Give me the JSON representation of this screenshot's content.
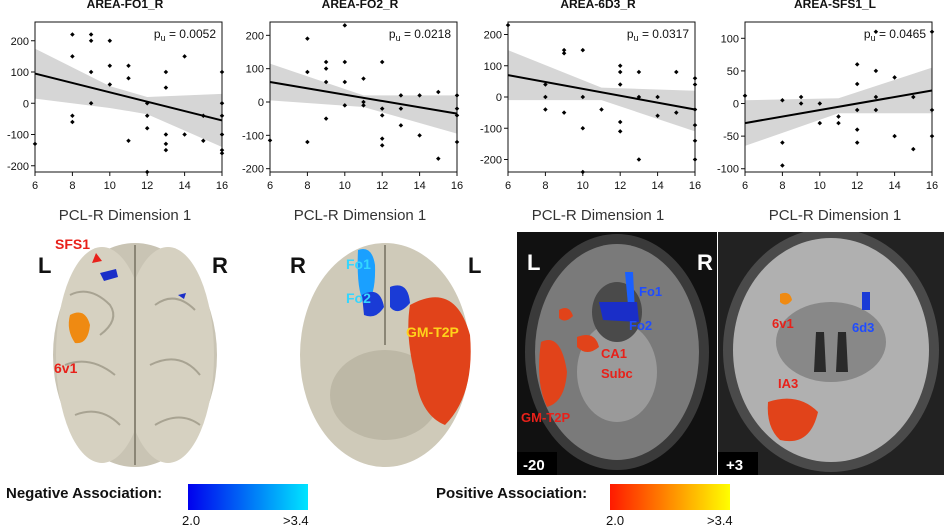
{
  "chart_data": [
    {
      "type": "scatter",
      "title": "AREA-FO1_R",
      "pvalue_label": "= 0.0052",
      "xlabel": "PCL-R Dimension 1",
      "xlim": [
        6,
        16
      ],
      "xticks": [
        6,
        8,
        10,
        12,
        14,
        16
      ],
      "ylim": [
        -220,
        260
      ],
      "yticks": [
        "-200",
        "-100",
        "0",
        "100",
        "200"
      ],
      "yticks_visible": [
        "200",
        "100",
        "0",
        "-100",
        "-200"
      ],
      "fit": [
        [
          6,
          95
        ],
        [
          16,
          -55
        ]
      ],
      "ci_upper": [
        [
          6,
          175
        ],
        [
          10,
          55
        ],
        [
          12,
          20
        ],
        [
          16,
          30
        ]
      ],
      "ci_lower": [
        [
          6,
          15
        ],
        [
          10,
          -15
        ],
        [
          12,
          -35
        ],
        [
          16,
          -140
        ]
      ],
      "points": [
        [
          6,
          -130
        ],
        [
          8,
          220
        ],
        [
          8,
          150
        ],
        [
          8,
          -60
        ],
        [
          8,
          -40
        ],
        [
          9,
          220
        ],
        [
          9,
          200
        ],
        [
          9,
          100
        ],
        [
          9,
          0
        ],
        [
          10,
          200
        ],
        [
          10,
          120
        ],
        [
          10,
          60
        ],
        [
          11,
          120
        ],
        [
          11,
          80
        ],
        [
          11,
          -120
        ],
        [
          12,
          0
        ],
        [
          12,
          -40
        ],
        [
          12,
          -80
        ],
        [
          12,
          -260
        ],
        [
          13,
          100
        ],
        [
          13,
          50
        ],
        [
          13,
          -100
        ],
        [
          13,
          -130
        ],
        [
          13,
          -150
        ],
        [
          14,
          150
        ],
        [
          14,
          -100
        ],
        [
          15,
          -40
        ],
        [
          15,
          -120
        ],
        [
          16,
          100
        ],
        [
          16,
          0
        ],
        [
          16,
          -40
        ],
        [
          16,
          -100
        ],
        [
          16,
          -150
        ],
        [
          16,
          -160
        ]
      ]
    },
    {
      "type": "scatter",
      "title": "AREA-FO2_R",
      "pvalue_label": "= 0.0218",
      "xlabel": "PCL-R Dimension 1",
      "xlim": [
        6,
        16
      ],
      "xticks": [
        6,
        8,
        10,
        12,
        14,
        16
      ],
      "ylim": [
        -210,
        240
      ],
      "yticks": [
        "-200",
        "-100",
        "0",
        "100",
        "200"
      ],
      "fit": [
        [
          6,
          60
        ],
        [
          16,
          -35
        ]
      ],
      "ci_upper": [
        [
          6,
          115
        ],
        [
          11,
          20
        ],
        [
          16,
          20
        ]
      ],
      "ci_lower": [
        [
          6,
          5
        ],
        [
          11,
          -15
        ],
        [
          16,
          -95
        ]
      ],
      "points": [
        [
          6,
          -115
        ],
        [
          8,
          190
        ],
        [
          8,
          90
        ],
        [
          8,
          -120
        ],
        [
          9,
          120
        ],
        [
          9,
          100
        ],
        [
          9,
          60
        ],
        [
          9,
          -50
        ],
        [
          10,
          230
        ],
        [
          10,
          120
        ],
        [
          10,
          60
        ],
        [
          10,
          -10
        ],
        [
          11,
          70
        ],
        [
          11,
          0
        ],
        [
          11,
          -10
        ],
        [
          12,
          120
        ],
        [
          12,
          -20
        ],
        [
          12,
          -40
        ],
        [
          12,
          -110
        ],
        [
          12,
          -130
        ],
        [
          13,
          20
        ],
        [
          13,
          -20
        ],
        [
          13,
          -70
        ],
        [
          14,
          20
        ],
        [
          14,
          -100
        ],
        [
          15,
          30
        ],
        [
          15,
          -170
        ],
        [
          16,
          20
        ],
        [
          16,
          -20
        ],
        [
          16,
          -40
        ],
        [
          16,
          -120
        ]
      ]
    },
    {
      "type": "scatter",
      "title": "AREA-6D3_R",
      "pvalue_label": "= 0.0317",
      "xlabel": "PCL-R Dimension 1",
      "xlim": [
        6,
        16
      ],
      "xticks": [
        6,
        8,
        10,
        12,
        14,
        16
      ],
      "ylim": [
        -240,
        240
      ],
      "yticks": [
        "-200",
        "-100",
        "0",
        "100",
        "200"
      ],
      "fit": [
        [
          6,
          70
        ],
        [
          16,
          -40
        ]
      ],
      "ci_upper": [
        [
          6,
          150
        ],
        [
          11,
          30
        ],
        [
          16,
          20
        ]
      ],
      "ci_lower": [
        [
          6,
          -10
        ],
        [
          11,
          -10
        ],
        [
          16,
          -110
        ]
      ],
      "points": [
        [
          6,
          230
        ],
        [
          8,
          40
        ],
        [
          8,
          0
        ],
        [
          8,
          -40
        ],
        [
          9,
          150
        ],
        [
          9,
          140
        ],
        [
          9,
          -50
        ],
        [
          10,
          150
        ],
        [
          10,
          0
        ],
        [
          10,
          -100
        ],
        [
          10,
          -240
        ],
        [
          11,
          -40
        ],
        [
          12,
          100
        ],
        [
          12,
          80
        ],
        [
          12,
          40
        ],
        [
          12,
          -80
        ],
        [
          12,
          -110
        ],
        [
          13,
          80
        ],
        [
          13,
          0
        ],
        [
          13,
          -200
        ],
        [
          14,
          0
        ],
        [
          14,
          -60
        ],
        [
          15,
          80
        ],
        [
          15,
          -50
        ],
        [
          16,
          60
        ],
        [
          16,
          40
        ],
        [
          16,
          -40
        ],
        [
          16,
          -90
        ],
        [
          16,
          -140
        ],
        [
          16,
          -200
        ]
      ]
    },
    {
      "type": "scatter",
      "title": "AREA-SFS1_L",
      "pvalue_label": "= 0.0465",
      "xlabel": "PCL-R Dimension 1",
      "xlim": [
        6,
        16
      ],
      "xticks": [
        6,
        8,
        10,
        12,
        14,
        16
      ],
      "ylim": [
        -105,
        125
      ],
      "yticks": [
        "-100",
        "-50",
        "0",
        "50",
        "100"
      ],
      "fit": [
        [
          6,
          -30
        ],
        [
          16,
          20
        ]
      ],
      "ci_upper": [
        [
          6,
          5
        ],
        [
          11,
          8
        ],
        [
          16,
          55
        ]
      ],
      "ci_lower": [
        [
          6,
          -65
        ],
        [
          11,
          -15
        ],
        [
          16,
          -15
        ]
      ],
      "points": [
        [
          6,
          12
        ],
        [
          8,
          5
        ],
        [
          8,
          -60
        ],
        [
          8,
          -95
        ],
        [
          9,
          10
        ],
        [
          9,
          0
        ],
        [
          10,
          0
        ],
        [
          10,
          -30
        ],
        [
          11,
          -20
        ],
        [
          11,
          -30
        ],
        [
          12,
          60
        ],
        [
          12,
          30
        ],
        [
          12,
          -10
        ],
        [
          12,
          -40
        ],
        [
          12,
          -60
        ],
        [
          13,
          110
        ],
        [
          13,
          50
        ],
        [
          13,
          10
        ],
        [
          13,
          -10
        ],
        [
          14,
          40
        ],
        [
          14,
          -50
        ],
        [
          15,
          10
        ],
        [
          15,
          -70
        ],
        [
          16,
          110
        ],
        [
          16,
          -10
        ],
        [
          16,
          -50
        ]
      ]
    }
  ],
  "pvalue_prefix": "p",
  "pvalue_sub": "u",
  "brain_labels": {
    "b1_L": "L",
    "b1_R": "R",
    "b1_sfs1": "SFS1",
    "b1_6v1": "6v1",
    "b2_R": "R",
    "b2_L": "L",
    "b2_fo1": "Fo1",
    "b2_fo2": "Fo2",
    "b2_gmt2p": "GM-T2P",
    "b3_L": "L",
    "b3_R": "R",
    "b3_fo1": "Fo1",
    "b3_fo2": "Fo2",
    "b3_ca1": "CA1",
    "b3_subc": "Subc",
    "b3_gmt2p": "GM-T2P",
    "b3_slice": "-20",
    "b4_6v1": "6v1",
    "b4_6d3": "6d3",
    "b4_ia3": "IA3",
    "b4_slice": "+3"
  },
  "legend": {
    "negative_label": "Negative Association:",
    "negative_min": "2.0",
    "negative_max": ">3.4",
    "negative_colors": [
      "#0000ee",
      "#00e5ff"
    ],
    "positive_label": "Positive Association:",
    "positive_min": "2.0",
    "positive_max": ">3.4",
    "positive_colors": [
      "#ff1a00",
      "#ffff00"
    ]
  },
  "colors": {
    "ci_band": "#d6d6d6",
    "label_red": "#e8211a",
    "label_cyan": "#33d6ff",
    "label_yellow": "#ffd21a",
    "label_blue": "#1f4cff"
  }
}
